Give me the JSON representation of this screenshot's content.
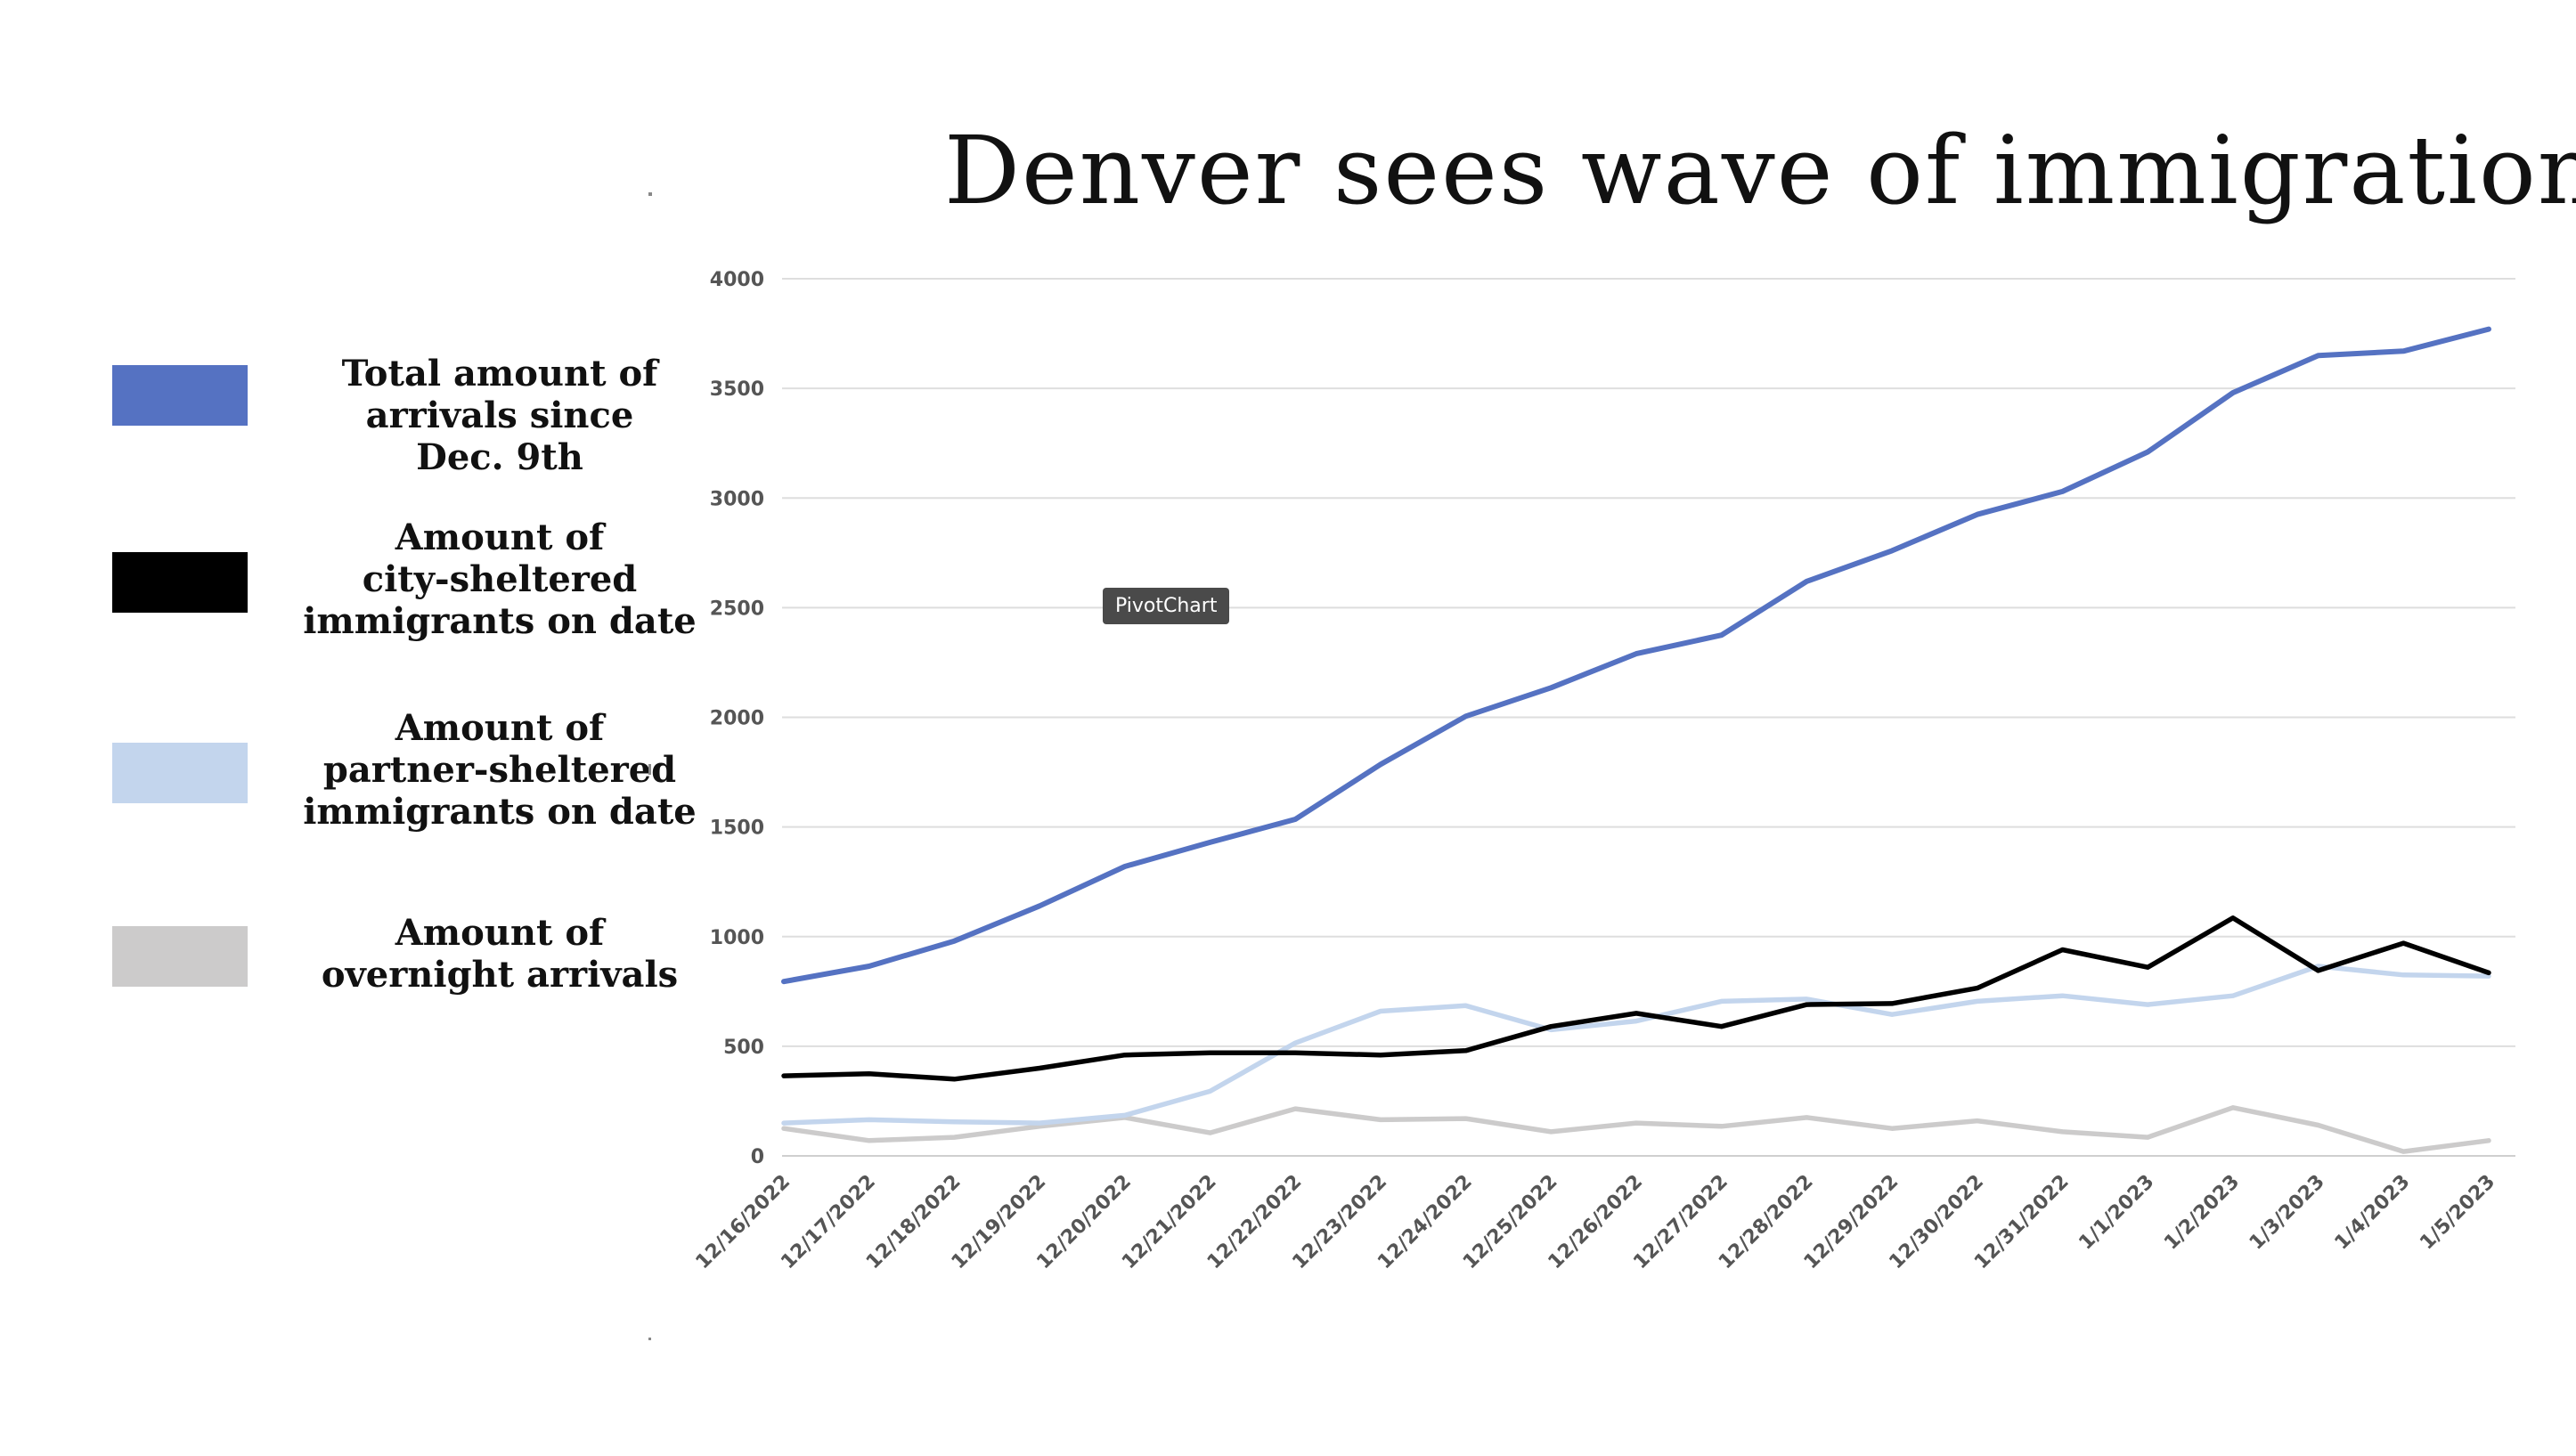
{
  "chart_data": {
    "type": "line",
    "title": "Denver sees wave of immigration",
    "xlabel": "",
    "ylabel": "",
    "ylim": [
      0,
      4000
    ],
    "yticks": [
      0,
      500,
      1000,
      1500,
      2000,
      2500,
      3000,
      3500,
      4000
    ],
    "grid": true,
    "legend_position": "left",
    "categories": [
      "12/16/2022",
      "12/17/2022",
      "12/18/2022",
      "12/19/2022",
      "12/20/2022",
      "12/21/2022",
      "12/22/2022",
      "12/23/2022",
      "12/24/2022",
      "12/25/2022",
      "12/26/2022",
      "12/27/2022",
      "12/28/2022",
      "12/29/2022",
      "12/30/2022",
      "12/31/2022",
      "1/1/2023",
      "1/2/2023",
      "1/3/2023",
      "1/4/2023",
      "1/5/2023"
    ],
    "series": [
      {
        "name": "Total amount of\narrivals since\nDec. 9th",
        "color": "#5572c2",
        "values": [
          795,
          865,
          980,
          1140,
          1320,
          1430,
          1535,
          1785,
          2005,
          2135,
          2290,
          2375,
          2620,
          2760,
          2925,
          3030,
          3210,
          3480,
          3650,
          3670,
          3770
        ]
      },
      {
        "name": "Amount of\ncity-sheltered\nimmigrants on date",
        "color": "#000000",
        "values": [
          365,
          375,
          350,
          400,
          460,
          470,
          470,
          460,
          480,
          590,
          650,
          590,
          690,
          695,
          765,
          940,
          860,
          1085,
          845,
          970,
          835
        ]
      },
      {
        "name": "Amount of\npartner-sheltered\nimmigrants on date",
        "color": "#c3d5ed",
        "values": [
          150,
          165,
          155,
          150,
          185,
          295,
          515,
          660,
          685,
          575,
          615,
          705,
          715,
          645,
          705,
          730,
          690,
          730,
          865,
          825,
          820
        ]
      },
      {
        "name": "Amount of\novernight arrivals",
        "color": "#cccbcb",
        "values": [
          125,
          70,
          85,
          135,
          175,
          105,
          215,
          165,
          170,
          110,
          150,
          135,
          175,
          125,
          160,
          110,
          85,
          220,
          140,
          20,
          70
        ]
      }
    ]
  },
  "tooltip_text": "PivotChart"
}
